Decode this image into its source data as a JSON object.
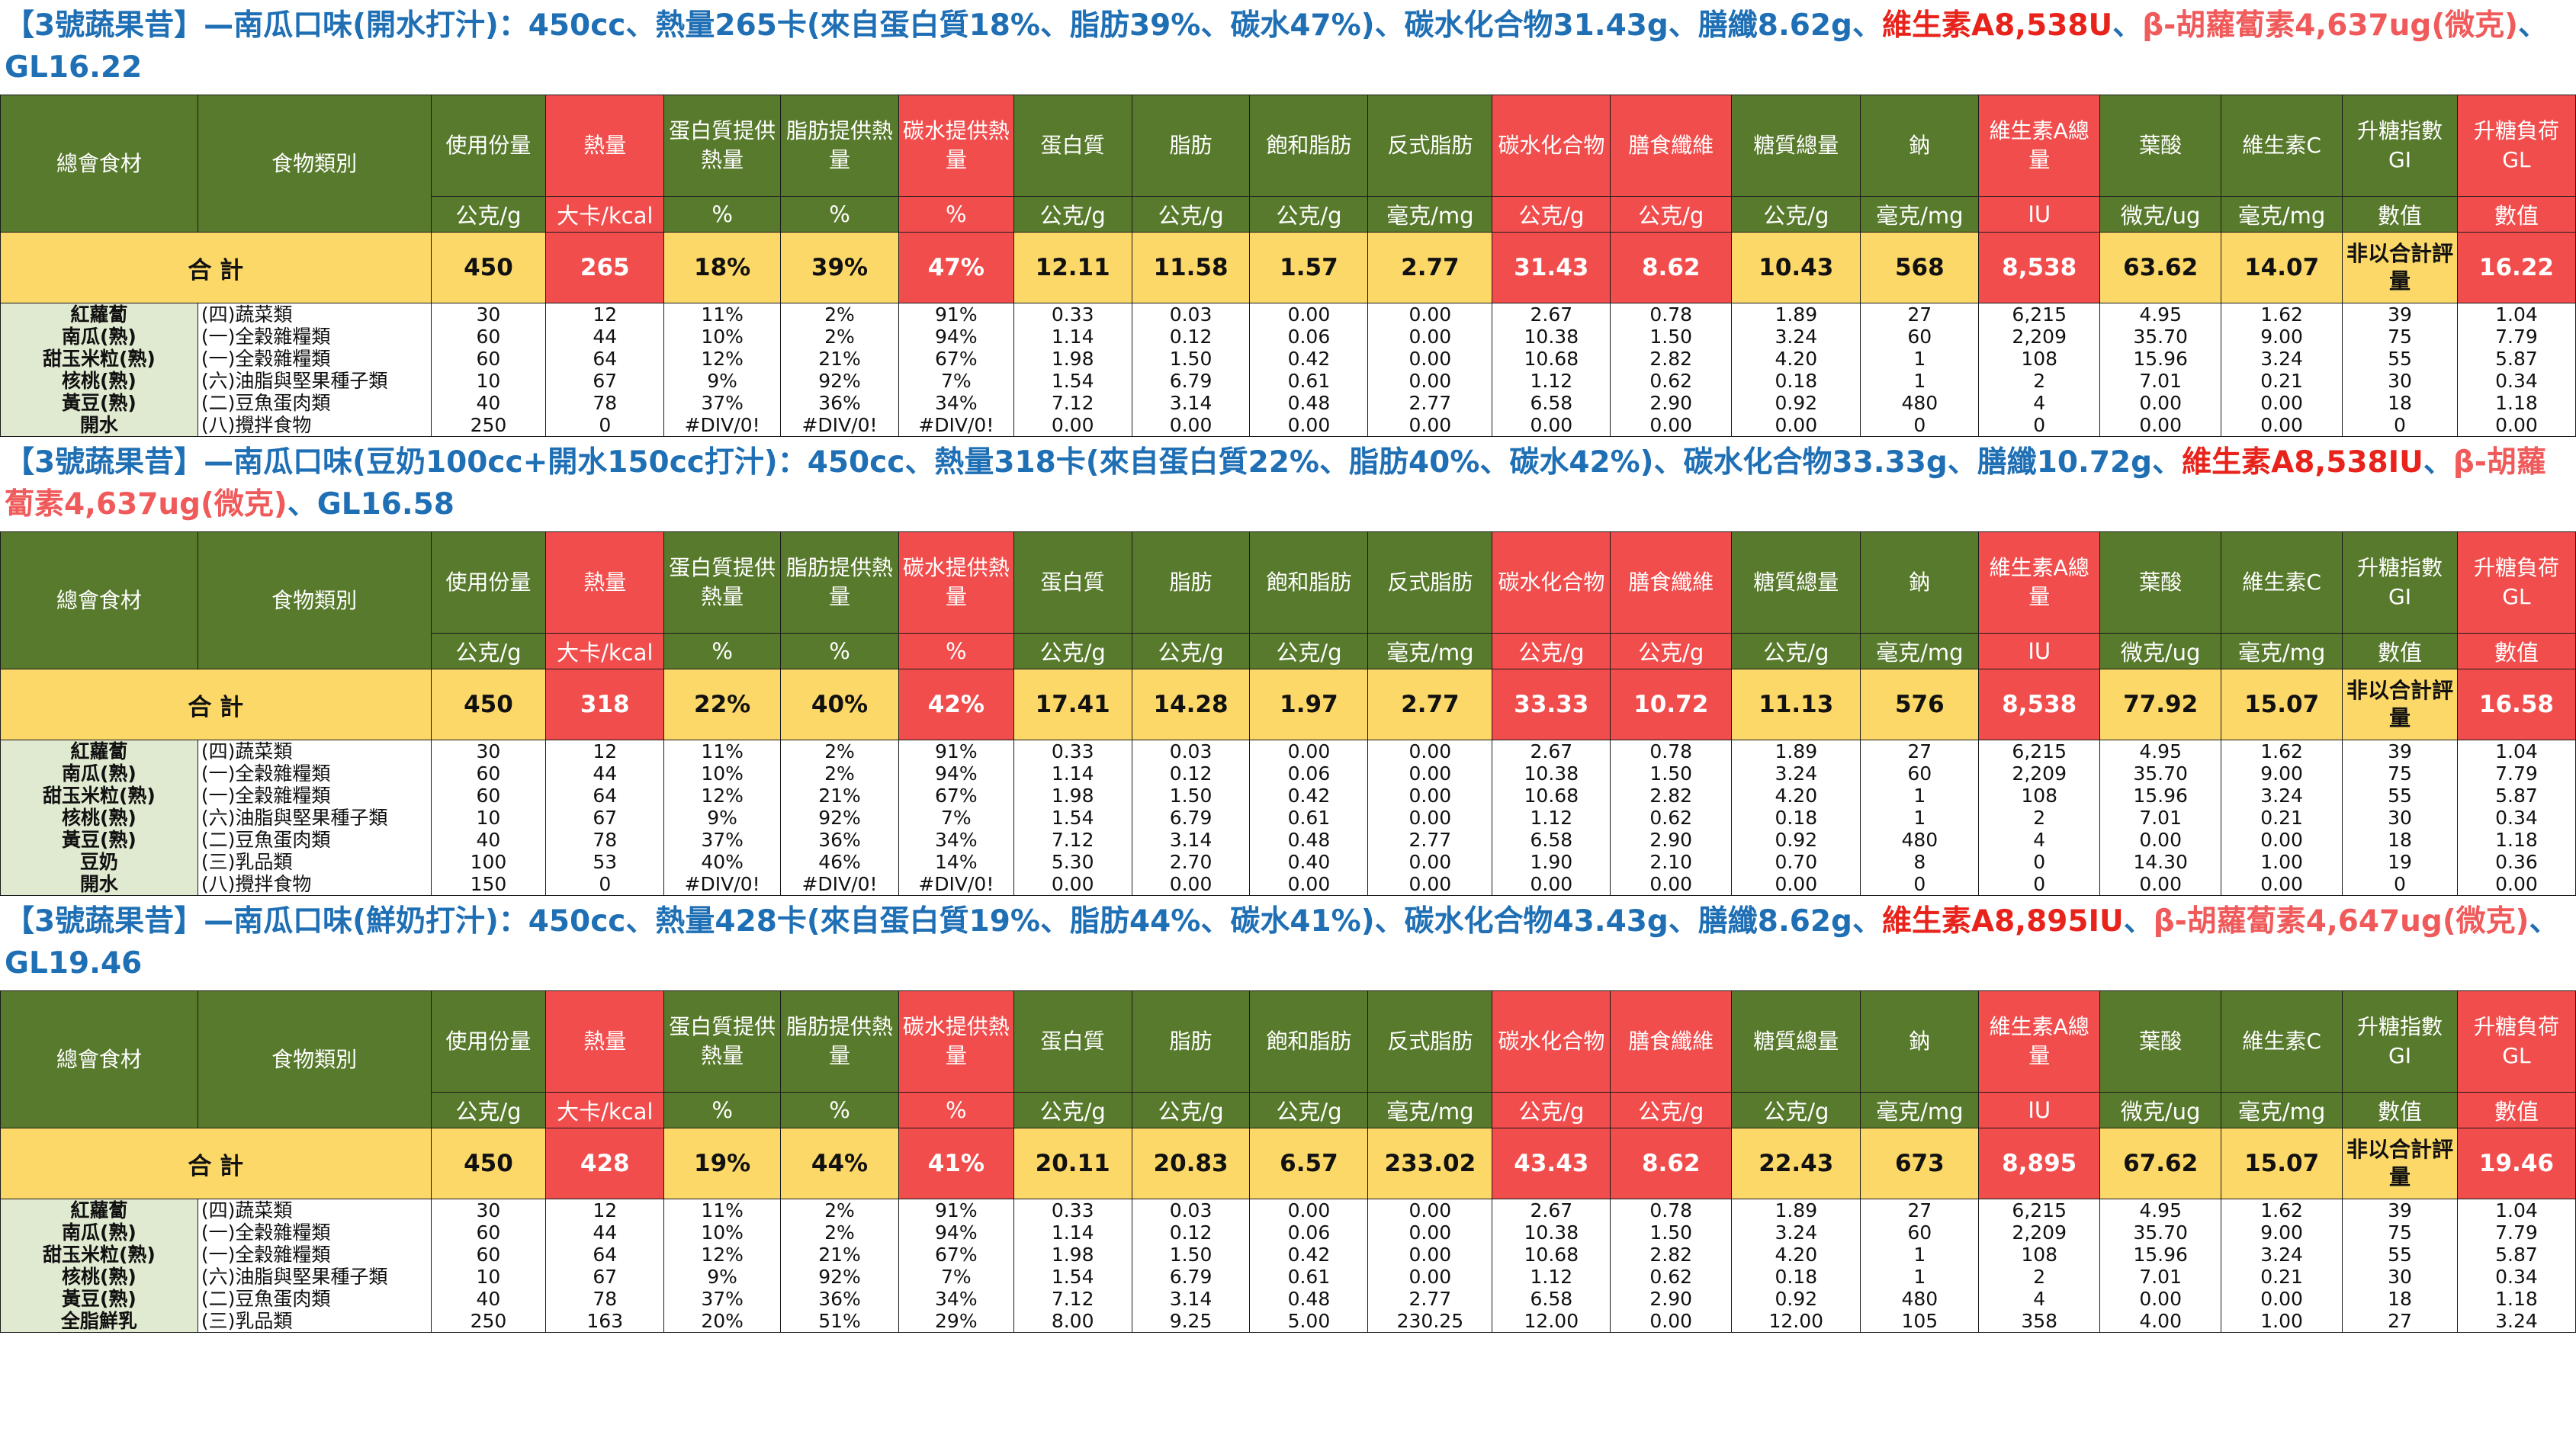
{
  "header": {
    "cols": [
      "總會食材",
      "食物類別",
      "使用份量",
      "熱量",
      "蛋白質提供熱量",
      "脂肪提供熱量",
      "碳水提供熱量",
      "蛋白質",
      "脂肪",
      "飽和脂肪",
      "反式脂肪",
      "碳水化合物",
      "膳食纖維",
      "糖質總量",
      "鈉",
      "維生素A總量",
      "葉酸",
      "維生素C",
      "升糖指數 GI",
      "升糖負荷 GL"
    ],
    "units": [
      "公克/g",
      "大卡/kcal",
      "%",
      "%",
      "%",
      "公克/g",
      "公克/g",
      "公克/g",
      "毫克/mg",
      "公克/g",
      "公克/g",
      "公克/g",
      "毫克/mg",
      "IU",
      "微克/ug",
      "毫克/mg",
      "數值",
      "數值"
    ],
    "sum_label": "合 計",
    "gi_note": "非以合計評量"
  },
  "sections": [
    {
      "title_blue": "【3號蔬果昔】—南瓜口味(開水打汁)：450cc、熱量265卡(來自蛋白質18%、脂肪39%、碳水47%)、碳水化合物31.43g、膳纖8.62g、",
      "title_red": "維生素A8,538U",
      "title_sep": "、",
      "title_pink": "β-胡蘿蔔素4,637ug(微克)",
      "title_tail": "、GL16.22",
      "sum": [
        "450",
        "265",
        "18%",
        "39%",
        "47%",
        "12.11",
        "11.58",
        "1.57",
        "2.77",
        "31.43",
        "8.62",
        "10.43",
        "568",
        "8,538",
        "63.62",
        "14.07",
        "16.22"
      ],
      "rows": [
        [
          "紅蘿蔔",
          "(四)蔬菜類",
          "30",
          "12",
          "11%",
          "2%",
          "91%",
          "0.33",
          "0.03",
          "0.00",
          "0.00",
          "2.67",
          "0.78",
          "1.89",
          "27",
          "6,215",
          "4.95",
          "1.62",
          "39",
          "1.04"
        ],
        [
          "南瓜(熟)",
          "(一)全穀雜糧類",
          "60",
          "44",
          "10%",
          "2%",
          "94%",
          "1.14",
          "0.12",
          "0.06",
          "0.00",
          "10.38",
          "1.50",
          "3.24",
          "60",
          "2,209",
          "35.70",
          "9.00",
          "75",
          "7.79"
        ],
        [
          "甜玉米粒(熟)",
          "(一)全穀雜糧類",
          "60",
          "64",
          "12%",
          "21%",
          "67%",
          "1.98",
          "1.50",
          "0.42",
          "0.00",
          "10.68",
          "2.82",
          "4.20",
          "1",
          "108",
          "15.96",
          "3.24",
          "55",
          "5.87"
        ],
        [
          "核桃(熟)",
          "(六)油脂與堅果種子類",
          "10",
          "67",
          "9%",
          "92%",
          "7%",
          "1.54",
          "6.79",
          "0.61",
          "0.00",
          "1.12",
          "0.62",
          "0.18",
          "1",
          "2",
          "7.01",
          "0.21",
          "30",
          "0.34"
        ],
        [
          "黃豆(熟)",
          "(二)豆魚蛋肉類",
          "40",
          "78",
          "37%",
          "36%",
          "34%",
          "7.12",
          "3.14",
          "0.48",
          "2.77",
          "6.58",
          "2.90",
          "0.92",
          "480",
          "4",
          "0.00",
          "0.00",
          "18",
          "1.18"
        ],
        [
          "開水",
          "(八)攪拌食物",
          "250",
          "0",
          "#DIV/0!",
          "#DIV/0!",
          "#DIV/0!",
          "0.00",
          "0.00",
          "0.00",
          "0.00",
          "0.00",
          "0.00",
          "0.00",
          "0",
          "0",
          "0.00",
          "0.00",
          "0",
          "0.00"
        ]
      ]
    },
    {
      "title_blue": "【3號蔬果昔】—南瓜口味(豆奶100cc+開水150cc打汁)：450cc、熱量318卡(來自蛋白質22%、脂肪40%、碳水42%)、碳水化合物33.33g、膳纖10.72g、",
      "title_red": "維生素A8,538IU",
      "title_sep": "、",
      "title_pink": "β-胡蘿蔔素4,637ug(微克)",
      "title_tail": "、GL16.58",
      "sum": [
        "450",
        "318",
        "22%",
        "40%",
        "42%",
        "17.41",
        "14.28",
        "1.97",
        "2.77",
        "33.33",
        "10.72",
        "11.13",
        "576",
        "8,538",
        "77.92",
        "15.07",
        "16.58"
      ],
      "rows": [
        [
          "紅蘿蔔",
          "(四)蔬菜類",
          "30",
          "12",
          "11%",
          "2%",
          "91%",
          "0.33",
          "0.03",
          "0.00",
          "0.00",
          "2.67",
          "0.78",
          "1.89",
          "27",
          "6,215",
          "4.95",
          "1.62",
          "39",
          "1.04"
        ],
        [
          "南瓜(熟)",
          "(一)全穀雜糧類",
          "60",
          "44",
          "10%",
          "2%",
          "94%",
          "1.14",
          "0.12",
          "0.06",
          "0.00",
          "10.38",
          "1.50",
          "3.24",
          "60",
          "2,209",
          "35.70",
          "9.00",
          "75",
          "7.79"
        ],
        [
          "甜玉米粒(熟)",
          "(一)全穀雜糧類",
          "60",
          "64",
          "12%",
          "21%",
          "67%",
          "1.98",
          "1.50",
          "0.42",
          "0.00",
          "10.68",
          "2.82",
          "4.20",
          "1",
          "108",
          "15.96",
          "3.24",
          "55",
          "5.87"
        ],
        [
          "核桃(熟)",
          "(六)油脂與堅果種子類",
          "10",
          "67",
          "9%",
          "92%",
          "7%",
          "1.54",
          "6.79",
          "0.61",
          "0.00",
          "1.12",
          "0.62",
          "0.18",
          "1",
          "2",
          "7.01",
          "0.21",
          "30",
          "0.34"
        ],
        [
          "黃豆(熟)",
          "(二)豆魚蛋肉類",
          "40",
          "78",
          "37%",
          "36%",
          "34%",
          "7.12",
          "3.14",
          "0.48",
          "2.77",
          "6.58",
          "2.90",
          "0.92",
          "480",
          "4",
          "0.00",
          "0.00",
          "18",
          "1.18"
        ],
        [
          "豆奶",
          "(三)乳品類",
          "100",
          "53",
          "40%",
          "46%",
          "14%",
          "5.30",
          "2.70",
          "0.40",
          "0.00",
          "1.90",
          "2.10",
          "0.70",
          "8",
          "0",
          "14.30",
          "1.00",
          "19",
          "0.36"
        ],
        [
          "開水",
          "(八)攪拌食物",
          "150",
          "0",
          "#DIV/0!",
          "#DIV/0!",
          "#DIV/0!",
          "0.00",
          "0.00",
          "0.00",
          "0.00",
          "0.00",
          "0.00",
          "0.00",
          "0",
          "0",
          "0.00",
          "0.00",
          "0",
          "0.00"
        ]
      ]
    },
    {
      "title_blue": "【3號蔬果昔】—南瓜口味(鮮奶打汁)：450cc、熱量428卡(來自蛋白質19%、脂肪44%、碳水41%)、碳水化合物43.43g、膳纖8.62g、",
      "title_red": "維生素A8,895IU",
      "title_sep": "、",
      "title_pink": "β-胡蘿蔔素4,647ug(微克)",
      "title_tail": "、GL19.46",
      "sum": [
        "450",
        "428",
        "19%",
        "44%",
        "41%",
        "20.11",
        "20.83",
        "6.57",
        "233.02",
        "43.43",
        "8.62",
        "22.43",
        "673",
        "8,895",
        "67.62",
        "15.07",
        "19.46"
      ],
      "rows": [
        [
          "紅蘿蔔",
          "(四)蔬菜類",
          "30",
          "12",
          "11%",
          "2%",
          "91%",
          "0.33",
          "0.03",
          "0.00",
          "0.00",
          "2.67",
          "0.78",
          "1.89",
          "27",
          "6,215",
          "4.95",
          "1.62",
          "39",
          "1.04"
        ],
        [
          "南瓜(熟)",
          "(一)全穀雜糧類",
          "60",
          "44",
          "10%",
          "2%",
          "94%",
          "1.14",
          "0.12",
          "0.06",
          "0.00",
          "10.38",
          "1.50",
          "3.24",
          "60",
          "2,209",
          "35.70",
          "9.00",
          "75",
          "7.79"
        ],
        [
          "甜玉米粒(熟)",
          "(一)全穀雜糧類",
          "60",
          "64",
          "12%",
          "21%",
          "67%",
          "1.98",
          "1.50",
          "0.42",
          "0.00",
          "10.68",
          "2.82",
          "4.20",
          "1",
          "108",
          "15.96",
          "3.24",
          "55",
          "5.87"
        ],
        [
          "核桃(熟)",
          "(六)油脂與堅果種子類",
          "10",
          "67",
          "9%",
          "92%",
          "7%",
          "1.54",
          "6.79",
          "0.61",
          "0.00",
          "1.12",
          "0.62",
          "0.18",
          "1",
          "2",
          "7.01",
          "0.21",
          "30",
          "0.34"
        ],
        [
          "黃豆(熟)",
          "(二)豆魚蛋肉類",
          "40",
          "78",
          "37%",
          "36%",
          "34%",
          "7.12",
          "3.14",
          "0.48",
          "2.77",
          "6.58",
          "2.90",
          "0.92",
          "480",
          "4",
          "0.00",
          "0.00",
          "18",
          "1.18"
        ],
        [
          "全脂鮮乳",
          "(三)乳品類",
          "250",
          "163",
          "20%",
          "51%",
          "29%",
          "8.00",
          "9.25",
          "5.00",
          "230.25",
          "12.00",
          "0.00",
          "12.00",
          "105",
          "358",
          "4.00",
          "1.00",
          "27",
          "3.24"
        ]
      ]
    }
  ]
}
